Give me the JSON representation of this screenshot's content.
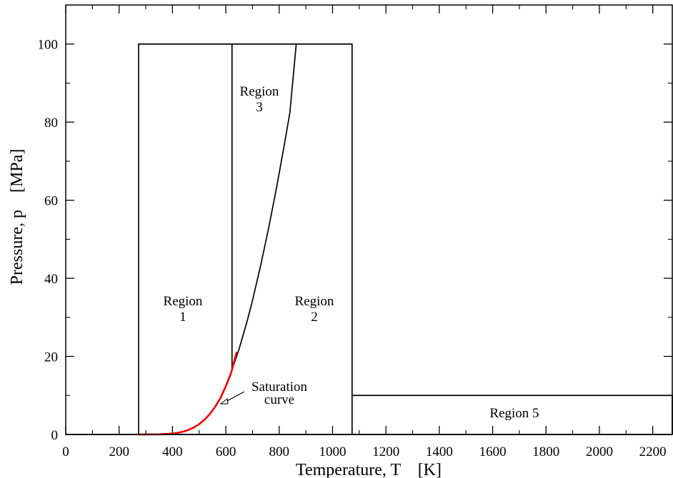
{
  "chart_data": {
    "type": "line",
    "xlabel": "Temperature, T    [K]",
    "ylabel": "Pressure, p    [MPa]",
    "xlim": [
      0,
      2273.15
    ],
    "ylim": [
      0,
      110
    ],
    "x_ticks": [
      0,
      200,
      400,
      600,
      800,
      1000,
      1200,
      1400,
      1600,
      1800,
      2000,
      2200
    ],
    "y_ticks": [
      0,
      20,
      40,
      60,
      80,
      100
    ],
    "grid": false,
    "boundaries": [
      {
        "name": "region-1-2-outline",
        "x": [
          273.15,
          273.15,
          1073.15,
          1073.15
        ],
        "y": [
          0,
          100,
          100,
          0
        ]
      },
      {
        "name": "region-3-boundary-left",
        "x": [
          623.15,
          623.15
        ],
        "y": [
          16.53,
          100
        ]
      },
      {
        "name": "region-5-outline",
        "x": [
          1073.15,
          2273.15,
          2273.15
        ],
        "y": [
          10,
          10,
          0
        ]
      },
      {
        "name": "region-2-3-boundary",
        "x": [
          623.15,
          650,
          680,
          700,
          730,
          760,
          790,
          820,
          840,
          863.91
        ],
        "y": [
          16.53,
          21.95,
          29.05,
          34.36,
          43.12,
          52.73,
          63.19,
          74.49,
          82.45,
          100
        ]
      },
      {
        "name": "baseline",
        "x": [
          0,
          2273.15
        ],
        "y": [
          0,
          0
        ]
      }
    ],
    "series": [
      {
        "name": "Saturation curve",
        "color": "#ee0000",
        "x": [
          273.15,
          300,
          350,
          400,
          420,
          440,
          460,
          480,
          500,
          520,
          540,
          560,
          580,
          600,
          620,
          640
        ],
        "y": [
          0.0006,
          0.0035,
          0.0417,
          0.2458,
          0.437,
          0.733,
          1.17,
          1.79,
          2.64,
          3.77,
          5.24,
          7.08,
          9.38,
          12.34,
          15.8,
          21.0
        ]
      }
    ],
    "annotations": [
      {
        "key": "region1",
        "lines": [
          "Region",
          "1"
        ]
      },
      {
        "key": "region2",
        "lines": [
          "Region",
          "2"
        ]
      },
      {
        "key": "region3",
        "lines": [
          "Region",
          "3"
        ]
      },
      {
        "key": "region5",
        "lines": [
          "Region 5"
        ]
      },
      {
        "key": "saturation",
        "lines": [
          "Saturation",
          "curve"
        ]
      }
    ]
  }
}
